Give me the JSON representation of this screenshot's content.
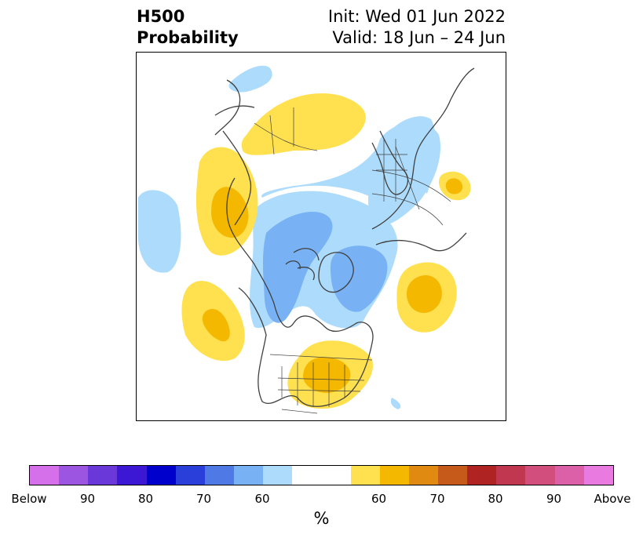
{
  "title": {
    "left_line1": "H500",
    "left_line2": "Probability",
    "right_line1": "Init: Wed 01 Jun 2022",
    "right_line2": "Valid: 18 Jun – 24 Jun"
  },
  "colorbar": {
    "unit": "%",
    "colors": [
      "#d670ea",
      "#9b55e0",
      "#6a37d9",
      "#3d18d4",
      "#0000cd",
      "#2a3fda",
      "#4f7ae6",
      "#78b2f4",
      "#acdbfc",
      "#ffffff",
      "#ffe14f",
      "#f5b800",
      "#e18a12",
      "#c65a1b",
      "#b02323",
      "#c23750",
      "#d24e7d",
      "#dc60a8",
      "#e87ae0"
    ],
    "ticks": [
      {
        "label": "Below"
      },
      {
        "label": "90"
      },
      {
        "label": "80"
      },
      {
        "label": "70"
      },
      {
        "label": "60"
      },
      {
        "label": "60"
      },
      {
        "label": "70"
      },
      {
        "label": "80"
      },
      {
        "label": "90"
      },
      {
        "label": "Above"
      }
    ]
  },
  "legend_colors": {
    "below_60": "#acdbfc",
    "below_70": "#78b2f4",
    "above_60": "#ffe14f",
    "above_70": "#f5b800"
  }
}
